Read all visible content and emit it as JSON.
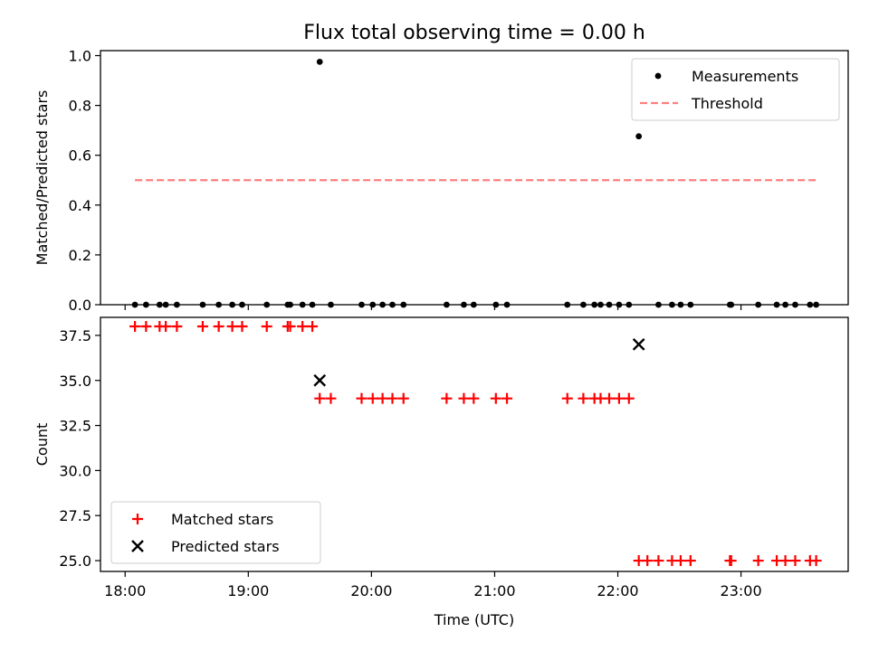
{
  "title": "Flux total observing time = 0.00 h",
  "chart_data": [
    {
      "type": "scatter",
      "title": "Flux total observing time = 0.00 h",
      "xlabel": "",
      "ylabel": "Matched/Predicted stars",
      "xlim": [
        17.8,
        23.87
      ],
      "ylim": [
        0.0,
        1.02
      ],
      "grid": false,
      "legend_position": "top-right",
      "yticks": [
        0.0,
        0.2,
        0.4,
        0.6,
        0.8,
        1.0
      ],
      "ytick_labels": [
        "0.0",
        "0.2",
        "0.4",
        "0.6",
        "0.8",
        "1.0"
      ],
      "xticks": [
        18,
        19,
        20,
        21,
        22,
        23
      ],
      "series": [
        {
          "name": "Measurements",
          "kind": "scatter",
          "marker": "dot",
          "color": "#000000",
          "points": [
            [
              18.08,
              0.0
            ],
            [
              18.17,
              0.0
            ],
            [
              18.28,
              0.0
            ],
            [
              18.33,
              0.0
            ],
            [
              18.42,
              0.0
            ],
            [
              18.63,
              0.0
            ],
            [
              18.76,
              0.0
            ],
            [
              18.87,
              0.0
            ],
            [
              18.95,
              0.0
            ],
            [
              19.15,
              0.0
            ],
            [
              19.32,
              0.0
            ],
            [
              19.34,
              0.0
            ],
            [
              19.44,
              0.0
            ],
            [
              19.52,
              0.0
            ],
            [
              19.58,
              0.975
            ],
            [
              19.67,
              0.0
            ],
            [
              19.92,
              0.0
            ],
            [
              20.01,
              0.0
            ],
            [
              20.09,
              0.0
            ],
            [
              20.17,
              0.0
            ],
            [
              20.26,
              0.0
            ],
            [
              20.61,
              0.0
            ],
            [
              20.75,
              0.0
            ],
            [
              20.83,
              0.0
            ],
            [
              21.01,
              0.0
            ],
            [
              21.1,
              0.0
            ],
            [
              21.59,
              0.0
            ],
            [
              21.72,
              0.0
            ],
            [
              21.81,
              0.0
            ],
            [
              21.86,
              0.0
            ],
            [
              21.93,
              0.0
            ],
            [
              22.01,
              0.0
            ],
            [
              22.09,
              0.0
            ],
            [
              22.17,
              0.676
            ],
            [
              22.33,
              0.0
            ],
            [
              22.44,
              0.0
            ],
            [
              22.51,
              0.0
            ],
            [
              22.59,
              0.0
            ],
            [
              22.91,
              0.0
            ],
            [
              22.92,
              0.0
            ],
            [
              23.14,
              0.0
            ],
            [
              23.29,
              0.0
            ],
            [
              23.36,
              0.0
            ],
            [
              23.44,
              0.0
            ],
            [
              23.56,
              0.0
            ],
            [
              23.61,
              0.0
            ]
          ]
        },
        {
          "name": "Threshold",
          "kind": "line",
          "style": "dashed",
          "color": "#ff7f7f",
          "points": [
            [
              18.08,
              0.5
            ],
            [
              23.61,
              0.5
            ]
          ]
        }
      ]
    },
    {
      "type": "scatter",
      "title": "",
      "xlabel": "Time (UTC)",
      "ylabel": "Count",
      "xlim": [
        17.8,
        23.87
      ],
      "ylim": [
        24.4,
        38.5
      ],
      "grid": false,
      "legend_position": "bottom-left",
      "yticks": [
        25.0,
        27.5,
        30.0,
        32.5,
        35.0,
        37.5
      ],
      "ytick_labels": [
        "25.0",
        "27.5",
        "30.0",
        "32.5",
        "35.0",
        "37.5"
      ],
      "xticks": [
        18,
        19,
        20,
        21,
        22,
        23
      ],
      "xtick_labels": [
        "18:00",
        "19:00",
        "20:00",
        "21:00",
        "22:00",
        "23:00"
      ],
      "series": [
        {
          "name": "Matched stars",
          "kind": "scatter",
          "marker": "plus",
          "color": "#ff0000",
          "points": [
            [
              18.08,
              38
            ],
            [
              18.17,
              38
            ],
            [
              18.28,
              38
            ],
            [
              18.33,
              38
            ],
            [
              18.42,
              38
            ],
            [
              18.63,
              38
            ],
            [
              18.76,
              38
            ],
            [
              18.87,
              38
            ],
            [
              18.95,
              38
            ],
            [
              19.15,
              38
            ],
            [
              19.32,
              38
            ],
            [
              19.34,
              38
            ],
            [
              19.44,
              38
            ],
            [
              19.52,
              38
            ],
            [
              19.58,
              34
            ],
            [
              19.67,
              34
            ],
            [
              19.92,
              34
            ],
            [
              20.01,
              34
            ],
            [
              20.09,
              34
            ],
            [
              20.17,
              34
            ],
            [
              20.26,
              34
            ],
            [
              20.61,
              34
            ],
            [
              20.75,
              34
            ],
            [
              20.83,
              34
            ],
            [
              21.01,
              34
            ],
            [
              21.1,
              34
            ],
            [
              21.59,
              34
            ],
            [
              21.72,
              34
            ],
            [
              21.81,
              34
            ],
            [
              21.86,
              34
            ],
            [
              21.93,
              34
            ],
            [
              22.01,
              34
            ],
            [
              22.09,
              34
            ],
            [
              22.17,
              25
            ],
            [
              22.24,
              25
            ],
            [
              22.33,
              25
            ],
            [
              22.44,
              25
            ],
            [
              22.51,
              25
            ],
            [
              22.59,
              25
            ],
            [
              22.91,
              25
            ],
            [
              22.92,
              25
            ],
            [
              23.14,
              25
            ],
            [
              23.29,
              25
            ],
            [
              23.36,
              25
            ],
            [
              23.44,
              25
            ],
            [
              23.56,
              25
            ],
            [
              23.61,
              25
            ]
          ]
        },
        {
          "name": "Predicted stars",
          "kind": "scatter",
          "marker": "x",
          "color": "#000000",
          "points": [
            [
              19.58,
              35
            ],
            [
              22.17,
              37
            ]
          ]
        }
      ]
    }
  ]
}
